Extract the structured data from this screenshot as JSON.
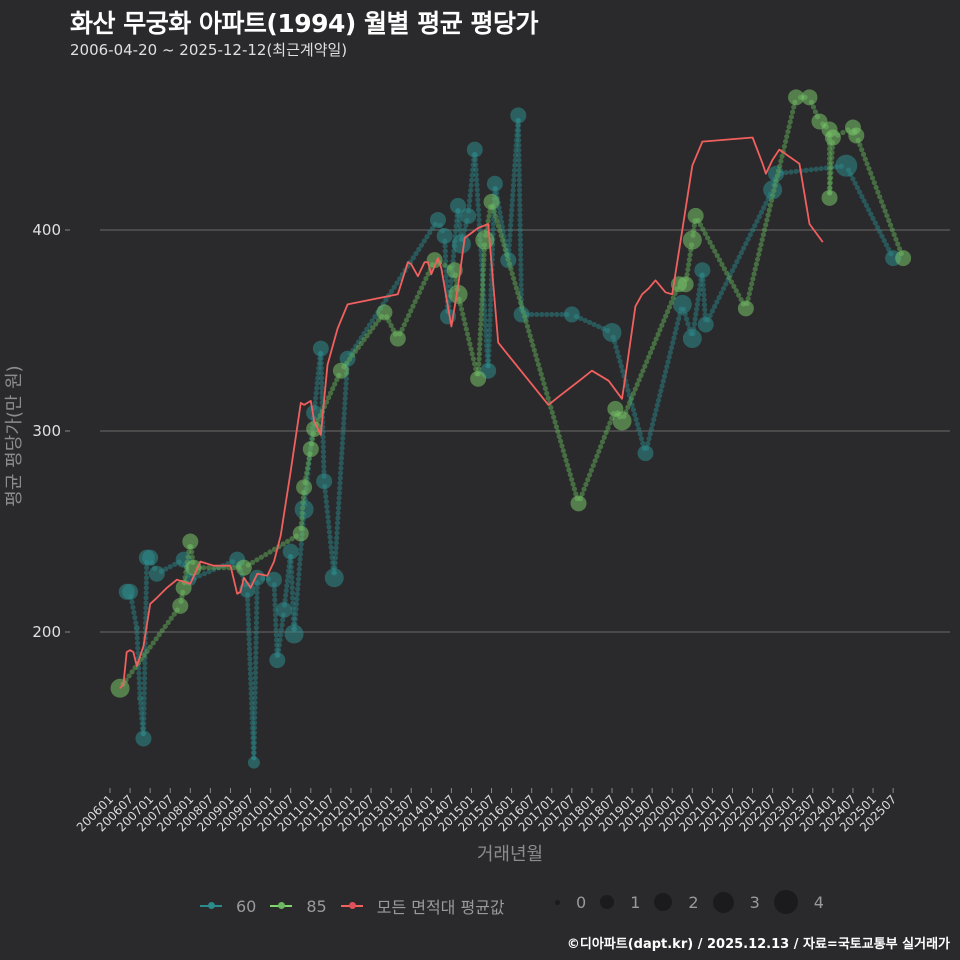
{
  "header": {
    "title": "화산 무궁화 아파트(1994) 월별 평균 평당가",
    "subtitle": "2006-04-20 ~ 2025-12-12(최근계약일)"
  },
  "axes": {
    "x_title": "거래년월",
    "y_title": "평균 평당가(만 원)",
    "y_ticks": [
      "200",
      "300",
      "400"
    ],
    "x_ticks": [
      "200601",
      "200607",
      "200701",
      "200707",
      "200801",
      "200807",
      "200901",
      "200907",
      "201001",
      "201007",
      "201101",
      "201107",
      "201201",
      "201207",
      "201301",
      "201307",
      "201401",
      "201407",
      "201501",
      "201507",
      "201601",
      "201607",
      "201701",
      "201707",
      "201801",
      "201807",
      "201901",
      "201907",
      "202001",
      "202007",
      "202101",
      "202107",
      "202201",
      "202207",
      "202301",
      "202307",
      "202401",
      "202407",
      "202501",
      "202507"
    ]
  },
  "legend": {
    "series": [
      {
        "label": "60",
        "color": "#2a8a8c"
      },
      {
        "label": "85",
        "color": "#7fd46e"
      },
      {
        "label": "모든 면적대 평균값",
        "color": "#f0605f"
      }
    ],
    "sizes": [
      "0",
      "1",
      "2",
      "3",
      "4"
    ]
  },
  "caption": "©디아파트(dapt.kr) / 2025.12.13 / 자료=국토교통부 실거래가",
  "colors": {
    "background": "#2a292b",
    "grid": "#6b6b6b",
    "s60": "#2e8c8c",
    "s85": "#78c46a",
    "avg": "#f0605f"
  },
  "chart_data": {
    "type": "scatter",
    "title": "화산 무궁화 아파트(1994) 월별 평균 평당가",
    "subtitle": "2006-04-20 ~ 2025-12-12(최근계약일)",
    "xlabel": "거래년월",
    "ylabel": "평균 평당가(만 원)",
    "ylim": [
      115,
      480
    ],
    "y_gridlines": [
      200,
      300,
      400
    ],
    "legend_position": "bottom",
    "series": [
      {
        "name": "60",
        "type": "scatter+connector",
        "points": [
          {
            "x": "200606",
            "y": 220,
            "size": 2
          },
          {
            "x": "200607",
            "y": 220,
            "size": 2
          },
          {
            "x": "200609",
            "y": 202,
            "size": 0
          },
          {
            "x": "200610",
            "y": 167,
            "size": 0
          },
          {
            "x": "200611",
            "y": 147,
            "size": 2
          },
          {
            "x": "200612",
            "y": 237,
            "size": 2
          },
          {
            "x": "200701",
            "y": 237,
            "size": 2
          },
          {
            "x": "200703",
            "y": 229,
            "size": 2
          },
          {
            "x": "200711",
            "y": 236,
            "size": 2
          },
          {
            "x": "200801",
            "y": 226,
            "size": 1
          },
          {
            "x": "200903",
            "y": 236,
            "size": 2
          },
          {
            "x": "200906",
            "y": 221,
            "size": 2
          },
          {
            "x": "200908",
            "y": 135,
            "size": 1
          },
          {
            "x": "200909",
            "y": 227,
            "size": 2
          },
          {
            "x": "201002",
            "y": 226,
            "size": 2
          },
          {
            "x": "201003",
            "y": 186,
            "size": 2
          },
          {
            "x": "201005",
            "y": 211,
            "size": 2
          },
          {
            "x": "201007",
            "y": 240,
            "size": 2
          },
          {
            "x": "201008",
            "y": 199,
            "size": 3
          },
          {
            "x": "201011",
            "y": 261,
            "size": 3
          },
          {
            "x": "201102",
            "y": 309,
            "size": 2
          },
          {
            "x": "201104",
            "y": 341,
            "size": 2
          },
          {
            "x": "201105",
            "y": 275,
            "size": 2
          },
          {
            "x": "201108",
            "y": 227,
            "size": 3
          },
          {
            "x": "201112",
            "y": 336,
            "size": 2
          },
          {
            "x": "201403",
            "y": 405,
            "size": 2
          },
          {
            "x": "201405",
            "y": 397,
            "size": 2
          },
          {
            "x": "201406",
            "y": 357,
            "size": 2
          },
          {
            "x": "201409",
            "y": 412,
            "size": 2
          },
          {
            "x": "201410",
            "y": 393,
            "size": 3
          },
          {
            "x": "201412",
            "y": 407,
            "size": 2
          },
          {
            "x": "201502",
            "y": 440,
            "size": 2
          },
          {
            "x": "201506",
            "y": 330,
            "size": 2
          },
          {
            "x": "201508",
            "y": 423,
            "size": 2
          },
          {
            "x": "201512",
            "y": 385,
            "size": 2
          },
          {
            "x": "201603",
            "y": 457,
            "size": 2
          },
          {
            "x": "201604",
            "y": 358,
            "size": 2
          },
          {
            "x": "201707",
            "y": 358,
            "size": 2
          },
          {
            "x": "201807",
            "y": 349,
            "size": 3
          },
          {
            "x": "201905",
            "y": 289,
            "size": 2
          },
          {
            "x": "202004",
            "y": 363,
            "size": 3
          },
          {
            "x": "202007",
            "y": 346,
            "size": 3
          },
          {
            "x": "202011",
            "y": 353,
            "size": 2
          },
          {
            "x": "202010",
            "y": 380,
            "size": 2
          },
          {
            "x": "202207",
            "y": 420,
            "size": 3
          },
          {
            "x": "202208",
            "y": 428,
            "size": 2
          },
          {
            "x": "202405",
            "y": 432,
            "size": 4
          },
          {
            "x": "202507",
            "y": 386,
            "size": 2
          }
        ]
      },
      {
        "name": "85",
        "type": "scatter+connector",
        "points": [
          {
            "x": "200604",
            "y": 172,
            "size": 3
          },
          {
            "x": "200710",
            "y": 213,
            "size": 2
          },
          {
            "x": "200711",
            "y": 222,
            "size": 2
          },
          {
            "x": "200801",
            "y": 245,
            "size": 2
          },
          {
            "x": "200802",
            "y": 232,
            "size": 2
          },
          {
            "x": "200905",
            "y": 232,
            "size": 2
          },
          {
            "x": "201010",
            "y": 249,
            "size": 2
          },
          {
            "x": "201011",
            "y": 272,
            "size": 2
          },
          {
            "x": "201101",
            "y": 291,
            "size": 2
          },
          {
            "x": "201102",
            "y": 301,
            "size": 2
          },
          {
            "x": "201110",
            "y": 330,
            "size": 2
          },
          {
            "x": "201211",
            "y": 359,
            "size": 2
          },
          {
            "x": "201303",
            "y": 346,
            "size": 2
          },
          {
            "x": "201402",
            "y": 385,
            "size": 2
          },
          {
            "x": "201408",
            "y": 380,
            "size": 2
          },
          {
            "x": "201409",
            "y": 368,
            "size": 3
          },
          {
            "x": "201503",
            "y": 326,
            "size": 2
          },
          {
            "x": "201505",
            "y": 395,
            "size": 3
          },
          {
            "x": "201507",
            "y": 414,
            "size": 2
          },
          {
            "x": "201709",
            "y": 264,
            "size": 2
          },
          {
            "x": "201808",
            "y": 311,
            "size": 2
          },
          {
            "x": "201810",
            "y": 305,
            "size": 3
          },
          {
            "x": "202003",
            "y": 373,
            "size": 2
          },
          {
            "x": "202005",
            "y": 373,
            "size": 2
          },
          {
            "x": "202007",
            "y": 395,
            "size": 3
          },
          {
            "x": "202008",
            "y": 407,
            "size": 2
          },
          {
            "x": "202111",
            "y": 361,
            "size": 2
          },
          {
            "x": "202302",
            "y": 466,
            "size": 2
          },
          {
            "x": "202306",
            "y": 466,
            "size": 2
          },
          {
            "x": "202309",
            "y": 454,
            "size": 2
          },
          {
            "x": "202312",
            "y": 450,
            "size": 2
          },
          {
            "x": "202401",
            "y": 446,
            "size": 2
          },
          {
            "x": "202312",
            "y": 416,
            "size": 2
          },
          {
            "x": "202407",
            "y": 451,
            "size": 2
          },
          {
            "x": "202408",
            "y": 447,
            "size": 2
          },
          {
            "x": "202510",
            "y": 386,
            "size": 2
          }
        ]
      },
      {
        "name": "모든 면적대 평균값",
        "type": "line",
        "points": [
          [
            "200604",
            172
          ],
          [
            "200605",
            174
          ],
          [
            "200606",
            190
          ],
          [
            "200607",
            191
          ],
          [
            "200608",
            190
          ],
          [
            "200609",
            183
          ],
          [
            "200611",
            193
          ],
          [
            "200701",
            214
          ],
          [
            "200703",
            217
          ],
          [
            "200706",
            222
          ],
          [
            "200709",
            226
          ],
          [
            "200801",
            224
          ],
          [
            "200804",
            235
          ],
          [
            "200808",
            233
          ],
          [
            "200901",
            233
          ],
          [
            "200903",
            219
          ],
          [
            "200904",
            220
          ],
          [
            "200905",
            227
          ],
          [
            "200907",
            222
          ],
          [
            "200909",
            229
          ],
          [
            "200912",
            228
          ],
          [
            "201002",
            235
          ],
          [
            "201004",
            248
          ],
          [
            "201007",
            280
          ],
          [
            "201010",
            314
          ],
          [
            "201011",
            313
          ],
          [
            "201101",
            315
          ],
          [
            "201102",
            305
          ],
          [
            "201104",
            298
          ],
          [
            "201106",
            333
          ],
          [
            "201109",
            351
          ],
          [
            "201112",
            363
          ],
          [
            "201303",
            368
          ],
          [
            "201306",
            384
          ],
          [
            "201307",
            383
          ],
          [
            "201309",
            377
          ],
          [
            "201311",
            384
          ],
          [
            "201312",
            384
          ],
          [
            "201401",
            378
          ],
          [
            "201403",
            386
          ],
          [
            "201404",
            381
          ],
          [
            "201407",
            352
          ],
          [
            "201409",
            372
          ],
          [
            "201411",
            396
          ],
          [
            "201503",
            401
          ],
          [
            "201506",
            403
          ],
          [
            "201509",
            344
          ],
          [
            "201612",
            313
          ],
          [
            "201703",
            317
          ],
          [
            "201710",
            326
          ],
          [
            "201801",
            330
          ],
          [
            "201806",
            325
          ],
          [
            "201810",
            316
          ],
          [
            "201811",
            327
          ],
          [
            "201902",
            362
          ],
          [
            "201904",
            368
          ],
          [
            "201906",
            371
          ],
          [
            "201908",
            375
          ],
          [
            "201911",
            369
          ],
          [
            "202001",
            368
          ],
          [
            "202004",
            400
          ],
          [
            "202007",
            432
          ],
          [
            "202010",
            444
          ],
          [
            "202201",
            446
          ],
          [
            "202204",
            433
          ],
          [
            "202205",
            428
          ],
          [
            "202207",
            435
          ],
          [
            "202209",
            440
          ],
          [
            "202303",
            433
          ],
          [
            "202306",
            403
          ],
          [
            "202310",
            394
          ]
        ]
      }
    ],
    "categories": [
      "200601",
      "200607",
      "200701",
      "200707",
      "200801",
      "200807",
      "200901",
      "200907",
      "201001",
      "201007",
      "201101",
      "201107",
      "201201",
      "201207",
      "201301",
      "201307",
      "201401",
      "201407",
      "201501",
      "201507",
      "201601",
      "201607",
      "201701",
      "201707",
      "201801",
      "201807",
      "201901",
      "201907",
      "202001",
      "202007",
      "202101",
      "202107",
      "202201",
      "202207",
      "202301",
      "202307",
      "202401",
      "202407",
      "202501",
      "202507"
    ],
    "size_legend": [
      0,
      1,
      2,
      3,
      4
    ]
  }
}
